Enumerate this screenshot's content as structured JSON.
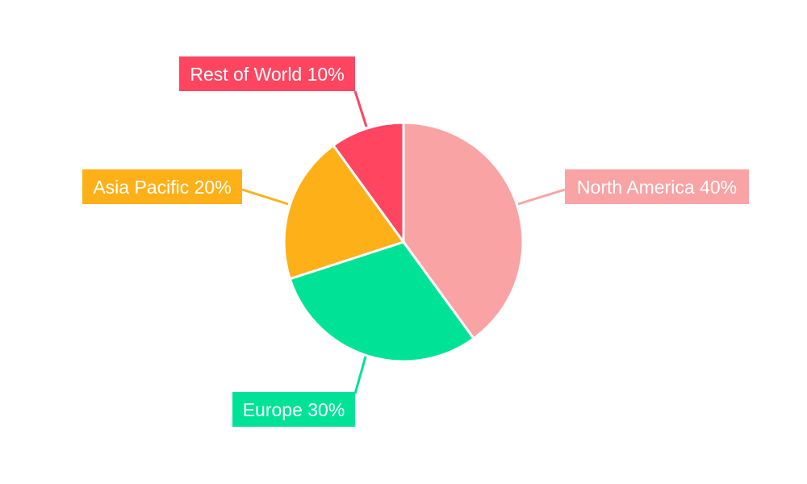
{
  "chart_data": {
    "type": "pie",
    "title": "",
    "start_angle": "top, clockwise",
    "legend": "none",
    "slices": [
      {
        "label": "North America",
        "value": 40,
        "color": "#f9a3a4",
        "text": "North America 40%"
      },
      {
        "label": "Europe",
        "value": 30,
        "color": "#00e396",
        "text": "Europe 30%"
      },
      {
        "label": "Asia Pacific",
        "value": 20,
        "color": "#feb019",
        "text": "Asia Pacific 20%"
      },
      {
        "label": "Rest of World",
        "value": 10,
        "color": "#ff4560",
        "text": "Rest of World 10%"
      }
    ]
  }
}
